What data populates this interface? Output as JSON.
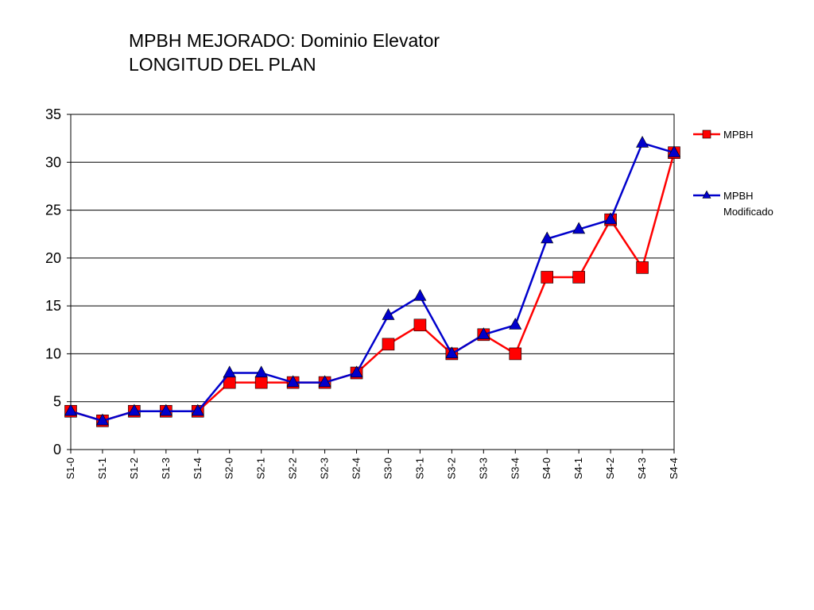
{
  "chart_data": {
    "type": "line",
    "title": "MPBH MEJORADO: Dominio Elevator",
    "subtitle": "LONGITUD DEL PLAN",
    "categories": [
      "S1-0",
      "S1-1",
      "S1-2",
      "S1-3",
      "S1-4",
      "S2-0",
      "S2-1",
      "S2-2",
      "S2-3",
      "S2-4",
      "S3-0",
      "S3-1",
      "S3-2",
      "S3-3",
      "S3-4",
      "S4-0",
      "S4-1",
      "S4-2",
      "S4-3",
      "S4-4"
    ],
    "ylim": [
      0,
      35
    ],
    "yticks": [
      0,
      5,
      10,
      15,
      20,
      25,
      30,
      35
    ],
    "grid": true,
    "legend_position": "right",
    "series": [
      {
        "name": "MPBH",
        "legend_lines": [
          "MPBH"
        ],
        "color": "#ff0000",
        "marker": "square",
        "values": [
          4,
          3,
          4,
          4,
          4,
          7,
          7,
          7,
          7,
          8,
          11,
          13,
          10,
          12,
          10,
          18,
          18,
          24,
          19,
          31
        ]
      },
      {
        "name": "MPBH Modificado",
        "legend_lines": [
          "MPBH",
          "Modificado"
        ],
        "color": "#0000cc",
        "marker": "triangle",
        "values": [
          4,
          3,
          4,
          4,
          4,
          8,
          8,
          7,
          7,
          8,
          14,
          16,
          10,
          12,
          13,
          22,
          23,
          24,
          32,
          31
        ]
      }
    ]
  }
}
